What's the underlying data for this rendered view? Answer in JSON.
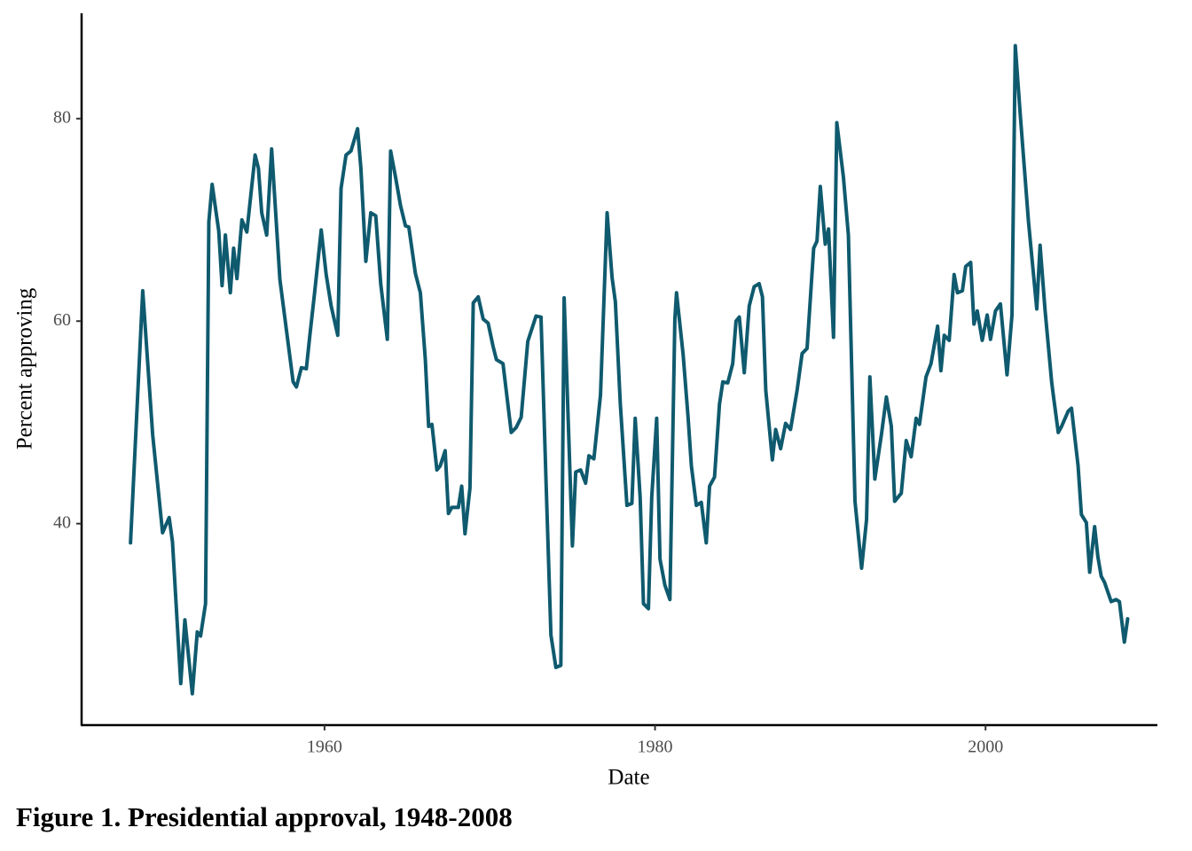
{
  "chart_data": {
    "type": "line",
    "caption": "Figure 1. Presidential approval, 1948-2008",
    "x_label": "Date",
    "y_label": "Percent approving",
    "color": "#0f5a6e",
    "xlim": [
      1945.3,
      2010.4
    ],
    "ylim": [
      20.1,
      90.4
    ],
    "xticks": [
      1960,
      1980,
      2000
    ],
    "yticks": [
      40,
      60,
      80
    ],
    "x": [
      1948.26,
      1949.0,
      1949.6,
      1950.2,
      1950.6,
      1950.8,
      1951.3,
      1951.55,
      1952.0,
      1952.3,
      1952.5,
      1952.8,
      1953.0,
      1953.2,
      1953.6,
      1953.8,
      1954.0,
      1954.3,
      1954.5,
      1954.7,
      1955.0,
      1955.3,
      1955.8,
      1956.0,
      1956.2,
      1956.5,
      1956.8,
      1957.3,
      1958.1,
      1958.3,
      1958.6,
      1958.9,
      1959.1,
      1959.4,
      1959.8,
      1960.1,
      1960.4,
      1960.8,
      1961.0,
      1961.3,
      1961.6,
      1962.0,
      1962.2,
      1962.5,
      1962.8,
      1963.1,
      1963.4,
      1963.8,
      1964.0,
      1964.3,
      1964.6,
      1964.9,
      1965.1,
      1965.5,
      1965.8,
      1966.1,
      1966.3,
      1966.5,
      1966.8,
      1967.0,
      1967.3,
      1967.5,
      1967.7,
      1968.1,
      1968.3,
      1968.5,
      1968.8,
      1969.0,
      1969.3,
      1969.6,
      1969.9,
      1970.2,
      1970.4,
      1970.8,
      1971.3,
      1971.6,
      1971.9,
      1972.3,
      1972.8,
      1973.1,
      1973.4,
      1973.7,
      1974.0,
      1974.3,
      1974.5,
      1975.0,
      1975.2,
      1975.5,
      1975.8,
      1976.0,
      1976.3,
      1976.7,
      1977.1,
      1977.4,
      1977.6,
      1977.9,
      1978.3,
      1978.6,
      1978.8,
      1979.1,
      1979.3,
      1979.6,
      1979.8,
      1980.1,
      1980.3,
      1980.6,
      1980.9,
      1981.2,
      1981.3,
      1981.7,
      1982.0,
      1982.2,
      1982.5,
      1982.8,
      1983.1,
      1983.3,
      1983.6,
      1983.9,
      1984.1,
      1984.4,
      1984.7,
      1984.9,
      1985.1,
      1985.4,
      1985.7,
      1986.0,
      1986.3,
      1986.5,
      1986.7,
      1987.1,
      1987.3,
      1987.6,
      1987.9,
      1988.2,
      1988.6,
      1988.9,
      1989.2,
      1989.6,
      1989.8,
      1990.0,
      1990.3,
      1990.5,
      1990.8,
      1991.0,
      1991.4,
      1991.7,
      1992.1,
      1992.5,
      1992.8,
      1993.0,
      1993.3,
      1993.7,
      1994.0,
      1994.3,
      1994.5,
      1994.9,
      1995.2,
      1995.5,
      1995.8,
      1996.0,
      1996.4,
      1996.7,
      1997.1,
      1997.3,
      1997.5,
      1997.8,
      1998.1,
      1998.3,
      1998.6,
      1998.8,
      1999.1,
      1999.3,
      1999.5,
      1999.8,
      2000.1,
      2000.3,
      2000.6,
      2000.9,
      2001.3,
      2001.6,
      2001.8,
      2002.1,
      2002.6,
      2003.1,
      2003.3,
      2003.6,
      2004.0,
      2004.1,
      2004.4,
      2004.6,
      2005.0,
      2005.2,
      2005.6,
      2005.8,
      2006.1,
      2006.3,
      2006.6,
      2006.8,
      2007.0,
      2007.2,
      2007.6,
      2007.9,
      2008.1,
      2008.4,
      2008.6
    ],
    "values": [
      38.1,
      63.0,
      48.8,
      39.1,
      40.6,
      38.2,
      24.2,
      30.5,
      23.2,
      29.3,
      28.9,
      32.1,
      69.8,
      73.5,
      68.9,
      63.5,
      68.5,
      62.8,
      67.2,
      64.2,
      70.0,
      68.8,
      76.4,
      75.1,
      70.7,
      68.5,
      77.0,
      64.1,
      54.0,
      53.5,
      55.4,
      55.3,
      58.4,
      62.8,
      69.0,
      64.6,
      61.5,
      58.6,
      73.1,
      76.4,
      76.8,
      79.0,
      75.1,
      65.9,
      70.7,
      70.4,
      63.7,
      58.2,
      76.8,
      74.2,
      71.4,
      69.4,
      69.3,
      64.7,
      62.8,
      56.2,
      49.6,
      49.8,
      45.3,
      45.7,
      47.2,
      41.0,
      41.6,
      41.6,
      43.7,
      39.0,
      43.5,
      61.8,
      62.4,
      60.2,
      59.8,
      57.5,
      56.2,
      55.8,
      49.0,
      49.5,
      50.5,
      58.0,
      60.5,
      60.4,
      44.4,
      29.0,
      25.8,
      26.0,
      62.3,
      37.8,
      45.1,
      45.3,
      44.0,
      46.7,
      46.4,
      52.7,
      70.7,
      64.3,
      61.9,
      51.8,
      41.8,
      42.0,
      50.4,
      42.6,
      32.1,
      31.6,
      42.6,
      50.4,
      36.5,
      33.9,
      32.5,
      60.2,
      62.8,
      56.7,
      50.5,
      45.7,
      41.8,
      42.1,
      38.1,
      43.7,
      44.6,
      51.8,
      54.0,
      53.9,
      55.8,
      60.0,
      60.4,
      54.9,
      61.5,
      63.4,
      63.7,
      62.4,
      53.2,
      46.3,
      49.3,
      47.4,
      49.9,
      49.3,
      53.2,
      56.8,
      57.3,
      67.2,
      67.9,
      73.3,
      67.6,
      69.1,
      58.4,
      79.6,
      74.2,
      68.5,
      42.2,
      35.6,
      40.4,
      54.5,
      44.4,
      48.8,
      52.5,
      49.6,
      42.2,
      43.0,
      48.2,
      46.6,
      50.4,
      49.8,
      54.5,
      55.8,
      59.5,
      55.1,
      58.6,
      58.1,
      64.6,
      62.8,
      63.0,
      65.4,
      65.8,
      59.7,
      61.0,
      58.1,
      60.6,
      58.2,
      61.0,
      61.7,
      54.7,
      60.6,
      87.2,
      80.4,
      69.8,
      61.2,
      67.5,
      61.1,
      54.0,
      52.7,
      49.0,
      49.6,
      51.1,
      51.4,
      45.7,
      40.9,
      40.1,
      35.2,
      39.7,
      36.7,
      34.8,
      34.2,
      32.3,
      32.5,
      32.3,
      28.3,
      30.6
    ]
  }
}
